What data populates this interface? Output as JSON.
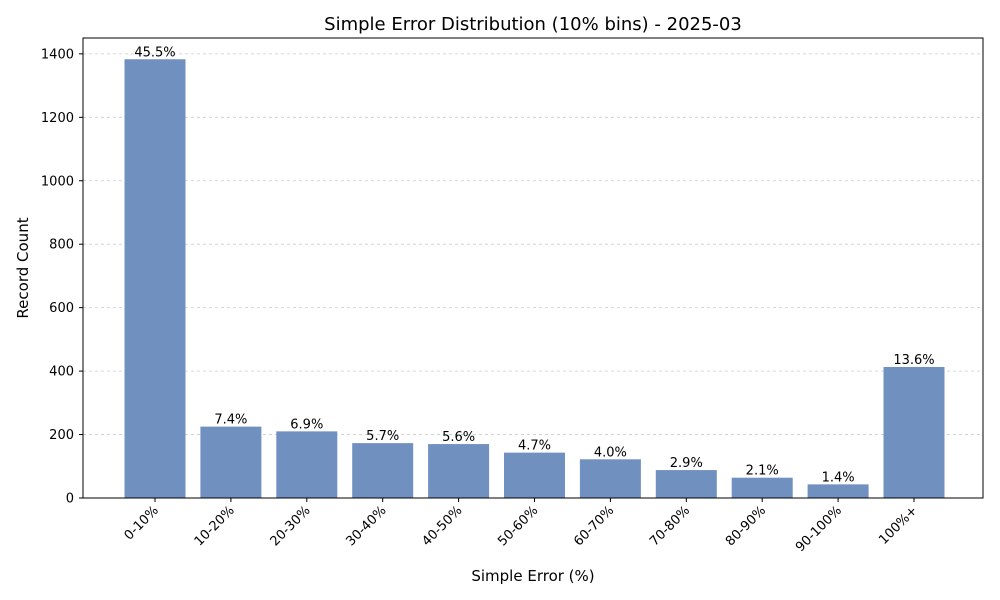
{
  "chart_data": {
    "type": "bar",
    "title": "Simple Error Distribution (10% bins) - 2025-03",
    "xlabel": "Simple Error (%)",
    "ylabel": "Record Count",
    "categories": [
      "0-10%",
      "10-20%",
      "20-30%",
      "30-40%",
      "40-50%",
      "50-60%",
      "60-70%",
      "70-80%",
      "80-90%",
      "90-100%",
      "100%+"
    ],
    "values": [
      1383,
      225,
      210,
      173,
      170,
      143,
      122,
      88,
      64,
      43,
      413
    ],
    "data_labels": [
      "45.5%",
      "7.4%",
      "6.9%",
      "5.7%",
      "5.6%",
      "4.7%",
      "4.0%",
      "2.9%",
      "2.1%",
      "1.4%",
      "13.6%"
    ],
    "ylim": [
      0,
      1450
    ],
    "yticks": [
      0,
      200,
      400,
      600,
      800,
      1000,
      1200,
      1400
    ],
    "grid": true,
    "bar_color": "#7090c0"
  }
}
